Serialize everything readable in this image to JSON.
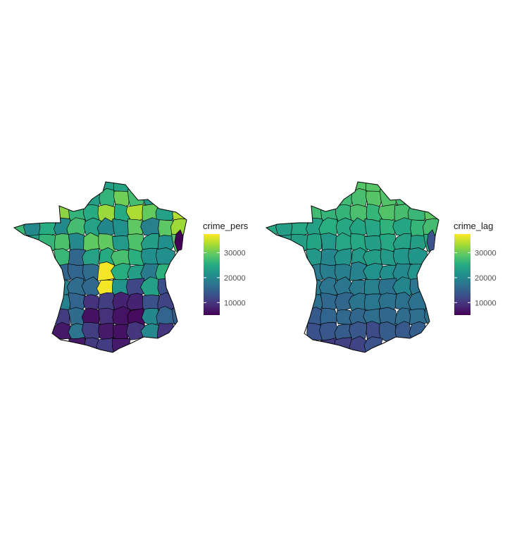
{
  "panels": [
    {
      "legend": {
        "title": "crime_pers",
        "min": 5000,
        "max": 37500,
        "ticks": [
          10000,
          20000,
          30000
        ],
        "tick_labels": [
          "10000",
          "20000",
          "30000"
        ]
      },
      "palette": "viridis"
    },
    {
      "legend": {
        "title": "crime_lag",
        "min": 5000,
        "max": 37500,
        "ticks": [
          10000,
          20000,
          30000
        ],
        "tick_labels": [
          "10000",
          "20000",
          "30000"
        ]
      },
      "palette": "viridis"
    }
  ],
  "colors": {
    "border": "#000000",
    "viridis_stops": [
      "#440154",
      "#472D7B",
      "#3B528B",
      "#2C728E",
      "#21908C",
      "#27AD81",
      "#5DC863",
      "#AADC32",
      "#FDE725"
    ]
  }
}
